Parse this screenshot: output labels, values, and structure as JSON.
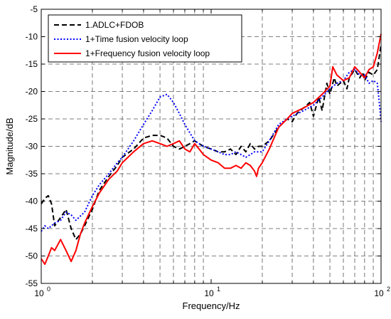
{
  "chart_data": {
    "type": "line",
    "xlabel": "Frequency/Hz",
    "ylabel": "Magnitude/dB",
    "x_scale": "log",
    "xlim": [
      1,
      100
    ],
    "ylim": [
      -55,
      -5
    ],
    "grid": true,
    "legend_position": "top-left",
    "x_ticks": [
      1,
      10,
      100
    ],
    "x_tick_labels": [
      "10",
      "10",
      "10"
    ],
    "x_tick_exponents": [
      "0",
      "1",
      "2"
    ],
    "y_ticks": [
      -55,
      -50,
      -45,
      -40,
      -35,
      -30,
      -25,
      -20,
      -15,
      -10,
      -5
    ],
    "y_tick_labels": [
      "-55",
      "-50",
      "-45",
      "-40",
      "-35",
      "-30",
      "-25",
      "-20",
      "-15",
      "-10",
      "-5"
    ],
    "series": [
      {
        "name": "1.ADLC+FDOB",
        "color": "#000000",
        "style": "dashed",
        "x": [
          1.0,
          1.05,
          1.1,
          1.15,
          1.2,
          1.3,
          1.4,
          1.5,
          1.6,
          1.7,
          1.8,
          2.0,
          2.2,
          2.5,
          2.8,
          3.0,
          3.5,
          4.0,
          4.5,
          5.0,
          5.5,
          6.0,
          6.5,
          7.0,
          7.5,
          8.0,
          8.5,
          9.0,
          10.0,
          11.0,
          12.0,
          13.0,
          14.0,
          15.0,
          16.0,
          17.0,
          18.0,
          19.0,
          20.0,
          22.0,
          25.0,
          28.0,
          30.0,
          32.0,
          35.0,
          38.0,
          40.0,
          43.0,
          45.0,
          48.0,
          50.0,
          53.0,
          55.0,
          60.0,
          63.0,
          65.0,
          70.0,
          75.0,
          78.0,
          80.0,
          85.0,
          90.0,
          95.0,
          100.0
        ],
        "y": [
          -40.5,
          -39.5,
          -39.0,
          -40.5,
          -44.5,
          -43.0,
          -41.5,
          -45.0,
          -47.0,
          -46.0,
          -44.5,
          -41.5,
          -38.0,
          -35.5,
          -33.5,
          -32.0,
          -30.5,
          -28.5,
          -28.0,
          -28.0,
          -28.5,
          -30.0,
          -30.5,
          -30.0,
          -29.5,
          -29.0,
          -29.5,
          -30.0,
          -30.5,
          -31.0,
          -31.0,
          -30.5,
          -31.5,
          -30.0,
          -31.0,
          -29.5,
          -30.5,
          -30.0,
          -30.0,
          -29.0,
          -26.5,
          -25.0,
          -25.5,
          -24.0,
          -23.0,
          -22.0,
          -24.5,
          -21.0,
          -23.5,
          -18.5,
          -20.5,
          -17.5,
          -19.0,
          -18.0,
          -19.5,
          -17.5,
          -16.0,
          -17.5,
          -16.5,
          -18.0,
          -16.5,
          -17.0,
          -16.0,
          -11.5
        ]
      },
      {
        "name": "1+Time fusion velocity loop",
        "color": "#0000ff",
        "style": "dotted",
        "x": [
          1.0,
          1.05,
          1.1,
          1.2,
          1.3,
          1.4,
          1.5,
          1.6,
          1.8,
          2.0,
          2.2,
          2.5,
          2.8,
          3.0,
          3.5,
          4.0,
          4.5,
          5.0,
          5.5,
          6.0,
          6.5,
          7.0,
          8.0,
          9.0,
          10.0,
          11.0,
          12.0,
          13.0,
          14.0,
          15.0,
          16.0,
          17.0,
          18.0,
          20.0,
          22.0,
          25.0,
          28.0,
          30.0,
          35.0,
          40.0,
          45.0,
          50.0,
          55.0,
          60.0,
          65.0,
          70.0,
          75.0,
          80.0,
          85.0,
          90.0,
          95.0,
          97.0,
          100.0
        ],
        "y": [
          -45.5,
          -44.5,
          -45.0,
          -44.0,
          -43.5,
          -42.0,
          -42.5,
          -43.5,
          -42.0,
          -39.0,
          -37.0,
          -35.0,
          -33.0,
          -32.0,
          -29.0,
          -26.0,
          -23.5,
          -21.0,
          -20.5,
          -22.0,
          -24.0,
          -26.0,
          -29.0,
          -30.0,
          -30.5,
          -31.0,
          -31.5,
          -31.5,
          -31.0,
          -31.5,
          -32.0,
          -31.5,
          -31.0,
          -31.0,
          -29.0,
          -26.0,
          -25.0,
          -24.5,
          -23.5,
          -22.5,
          -21.0,
          -19.5,
          -18.5,
          -18.0,
          -16.5,
          -16.0,
          -17.0,
          -17.0,
          -18.5,
          -18.0,
          -18.5,
          -21.0,
          -25.5
        ]
      },
      {
        "name": "1+Frequency fusion velocity loop",
        "color": "#ff0000",
        "style": "solid",
        "x": [
          1.0,
          1.05,
          1.1,
          1.15,
          1.2,
          1.3,
          1.4,
          1.5,
          1.6,
          1.7,
          1.8,
          2.0,
          2.2,
          2.5,
          2.8,
          3.0,
          3.5,
          4.0,
          4.5,
          5.0,
          5.5,
          6.0,
          6.5,
          7.0,
          7.5,
          8.0,
          8.5,
          9.0,
          10.0,
          11.0,
          12.0,
          13.0,
          14.0,
          15.0,
          16.0,
          17.0,
          18.0,
          18.5,
          19.0,
          20.0,
          22.0,
          25.0,
          28.0,
          30.0,
          35.0,
          40.0,
          45.0,
          50.0,
          52.0,
          55.0,
          60.0,
          65.0,
          70.0,
          75.0,
          80.0,
          85.0,
          90.0,
          95.0,
          100.0
        ],
        "y": [
          -50.5,
          -51.5,
          -50.0,
          -48.5,
          -49.0,
          -47.0,
          -49.0,
          -51.0,
          -49.0,
          -46.0,
          -44.0,
          -41.0,
          -38.5,
          -36.0,
          -34.5,
          -33.0,
          -31.0,
          -29.5,
          -29.0,
          -29.5,
          -30.0,
          -29.5,
          -29.0,
          -30.5,
          -31.0,
          -29.5,
          -30.5,
          -31.5,
          -32.5,
          -33.0,
          -34.0,
          -34.0,
          -33.5,
          -34.0,
          -33.0,
          -33.5,
          -34.5,
          -35.5,
          -34.0,
          -33.0,
          -30.5,
          -26.5,
          -25.0,
          -24.0,
          -23.0,
          -22.0,
          -20.5,
          -19.0,
          -15.5,
          -17.0,
          -18.0,
          -17.5,
          -15.5,
          -16.5,
          -17.5,
          -16.0,
          -15.5,
          -13.0,
          -9.5
        ]
      }
    ]
  }
}
